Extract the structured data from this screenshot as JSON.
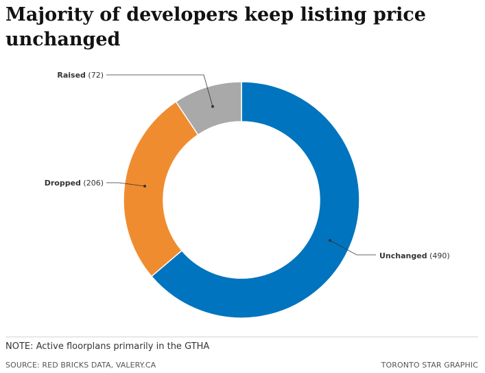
{
  "title": "Majority of developers keep listing price unchanged",
  "footer": {
    "note": "NOTE: Active floorplans primarily in the GTHA",
    "source": "SOURCE: RED BRICKS DATA, VALERY.CA",
    "credit": "TORONTO STAR GRAPHIC"
  },
  "chart_data": {
    "type": "pie",
    "donut": true,
    "title": "Majority of developers keep listing price unchanged",
    "slices": [
      {
        "label": "Unchanged",
        "value": 490,
        "value_text": "(490)",
        "color": "#0074be"
      },
      {
        "label": "Dropped",
        "value": 206,
        "value_text": "(206)",
        "color": "#f08c30"
      },
      {
        "label": "Raised",
        "value": 72,
        "value_text": "(72)",
        "color": "#a9a9a9"
      }
    ]
  }
}
